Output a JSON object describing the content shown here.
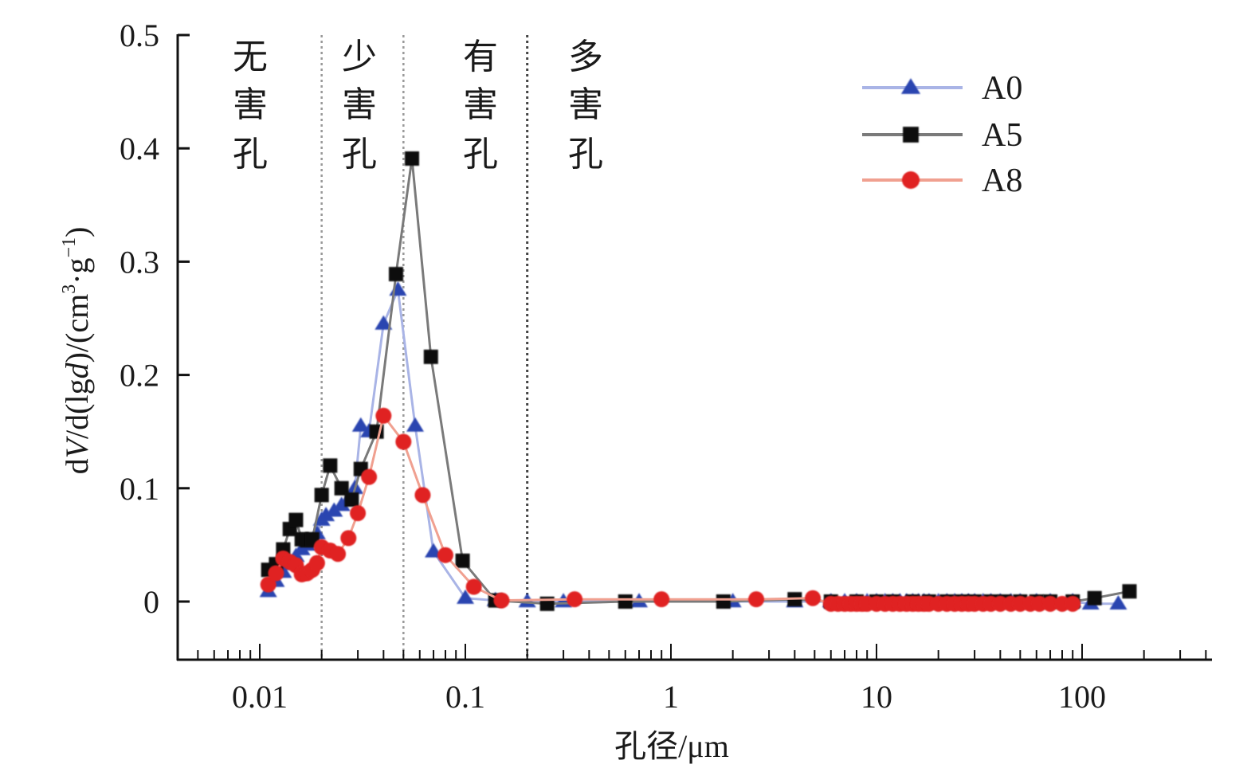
{
  "chart_data": {
    "type": "line",
    "title": "",
    "xlabel": "孔径/μm",
    "ylabel": "dV/d(lgd)/(cm³·g⁻¹)",
    "ylabel_parts": {
      "p1": "d",
      "p2": "V",
      "p3": "/d(lg",
      "p4": "d",
      "p5": ")/(cm",
      "p6": "3",
      "p7": "·g",
      "p8": "−1",
      "p9": ")"
    },
    "xscale": "log",
    "xlim": [
      0.004,
      400
    ],
    "ylim": [
      -0.05,
      0.5
    ],
    "x_ticks": [
      0.01,
      0.1,
      1,
      10,
      100
    ],
    "x_tick_labels": [
      "0.01",
      "0.1",
      "1",
      "10",
      "100"
    ],
    "y_ticks": [
      0,
      0.1,
      0.2,
      0.3,
      0.4,
      0.5
    ],
    "y_tick_labels": [
      "0",
      "0.1",
      "0.2",
      "0.3",
      "0.4",
      "0.5"
    ],
    "grid": false,
    "legend_position": "top-right",
    "zone_boundaries": [
      0.02,
      0.05,
      0.2
    ],
    "zones": [
      {
        "label": [
          "无",
          "害",
          "孔"
        ]
      },
      {
        "label": [
          "少",
          "害",
          "孔"
        ]
      },
      {
        "label": [
          "有",
          "害",
          "孔"
        ]
      },
      {
        "label": [
          "多",
          "害",
          "孔"
        ]
      }
    ],
    "series": [
      {
        "name": "A0",
        "marker": "triangle",
        "color": "#2a44b0",
        "line_color": "#a9b4e6",
        "x": [
          0.011,
          0.012,
          0.013,
          0.014,
          0.015,
          0.016,
          0.017,
          0.018,
          0.019,
          0.02,
          0.021,
          0.023,
          0.025,
          0.027,
          0.029,
          0.031,
          0.034,
          0.04,
          0.047,
          0.057,
          0.07,
          0.1,
          0.14,
          0.2,
          0.3,
          0.7,
          2,
          4,
          6,
          7,
          8,
          9,
          10,
          11,
          12,
          13,
          14,
          15,
          16,
          17,
          18,
          20,
          22,
          24,
          26,
          28,
          30,
          33,
          36,
          40,
          45,
          50,
          60,
          70,
          90,
          110,
          150
        ],
        "y": [
          0.009,
          0.018,
          0.026,
          0.033,
          0.04,
          0.046,
          0.05,
          0.053,
          0.06,
          0.072,
          0.076,
          0.08,
          0.085,
          0.09,
          0.1,
          0.155,
          0.15,
          0.245,
          0.275,
          0.155,
          0.044,
          0.003,
          0.001,
          0.0,
          0.0,
          0.0,
          0.0,
          0.0,
          0.0,
          0.0,
          0.0,
          0.0,
          0.0,
          0.0,
          0.0,
          0.0,
          0.0,
          0.0,
          0.0,
          0.0,
          0.0,
          0.0,
          0.0,
          0.0,
          0.0,
          0.0,
          0.0,
          0.0,
          0.0,
          0.0,
          0.0,
          0.0,
          0.0,
          0.0,
          0.0,
          -0.002,
          -0.002
        ]
      },
      {
        "name": "A5",
        "marker": "square",
        "color": "#111111",
        "line_color": "#7a7a7a",
        "x": [
          0.011,
          0.012,
          0.013,
          0.014,
          0.015,
          0.016,
          0.017,
          0.018,
          0.02,
          0.022,
          0.025,
          0.028,
          0.031,
          0.037,
          0.046,
          0.055,
          0.068,
          0.097,
          0.14,
          0.25,
          0.6,
          1.8,
          4,
          6,
          8,
          10,
          12,
          15,
          18,
          22,
          26,
          30,
          36,
          42,
          50,
          60,
          70,
          90,
          115,
          170
        ],
        "y": [
          0.028,
          0.033,
          0.046,
          0.064,
          0.072,
          0.055,
          0.054,
          0.055,
          0.094,
          0.12,
          0.1,
          0.09,
          0.117,
          0.15,
          0.289,
          0.391,
          0.216,
          0.036,
          0.001,
          -0.002,
          0.0,
          0.0,
          0.002,
          0.0,
          0.0,
          0.0,
          0.0,
          0.0,
          0.0,
          0.0,
          0.0,
          0.0,
          0.0,
          0.0,
          0.0,
          0.0,
          0.0,
          0.0,
          0.003,
          0.009
        ]
      },
      {
        "name": "A8",
        "marker": "circle",
        "color": "#e02020",
        "line_color": "#f0a090",
        "x": [
          0.011,
          0.012,
          0.013,
          0.014,
          0.015,
          0.016,
          0.017,
          0.018,
          0.019,
          0.02,
          0.022,
          0.024,
          0.027,
          0.03,
          0.034,
          0.04,
          0.05,
          0.062,
          0.08,
          0.11,
          0.15,
          0.34,
          0.9,
          2.6,
          4.9,
          6,
          6.5,
          7,
          7.5,
          8,
          8.5,
          9,
          10,
          11,
          12,
          13,
          14,
          15,
          16,
          17,
          18,
          20,
          22,
          24,
          26,
          28,
          30,
          33,
          36,
          40,
          45,
          50,
          56,
          62,
          70,
          80,
          90
        ],
        "y": [
          0.015,
          0.025,
          0.038,
          0.035,
          0.032,
          0.024,
          0.025,
          0.028,
          0.034,
          0.048,
          0.045,
          0.042,
          0.056,
          0.078,
          0.11,
          0.164,
          0.141,
          0.094,
          0.041,
          0.013,
          0.001,
          0.002,
          0.002,
          0.002,
          0.003,
          -0.002,
          -0.002,
          -0.002,
          -0.002,
          -0.002,
          -0.002,
          -0.002,
          -0.002,
          -0.002,
          -0.002,
          -0.002,
          -0.002,
          -0.002,
          -0.002,
          -0.002,
          -0.002,
          -0.002,
          -0.002,
          -0.002,
          -0.002,
          -0.002,
          -0.002,
          -0.002,
          -0.002,
          -0.002,
          -0.002,
          -0.002,
          -0.002,
          -0.002,
          -0.002,
          -0.002,
          -0.002
        ]
      }
    ]
  }
}
